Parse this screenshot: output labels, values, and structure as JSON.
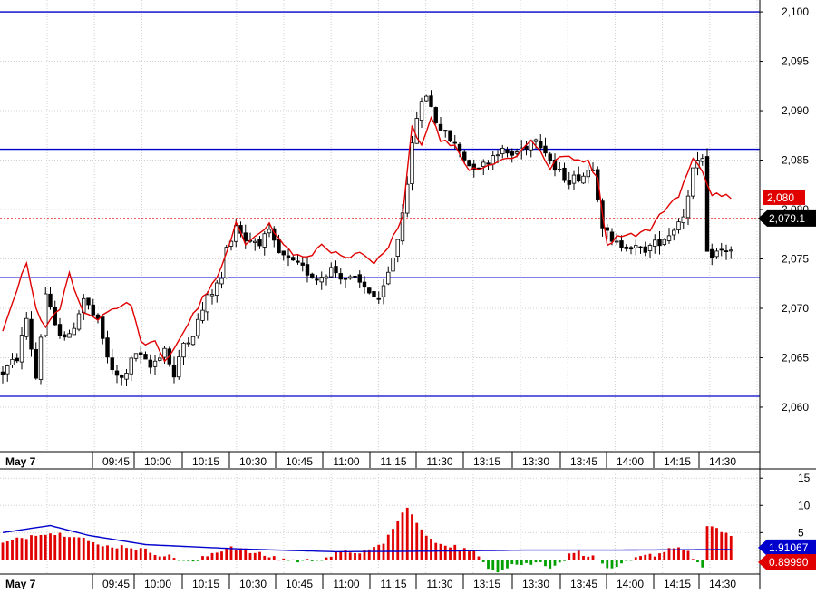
{
  "chart_data": [
    {
      "type": "candlestick",
      "title": "",
      "date_label": "May 7",
      "time_ticks": [
        "09:45",
        "10:00",
        "10:15",
        "10:30",
        "10:45",
        "11:00",
        "11:15",
        "11:30",
        "13:15",
        "13:30",
        "13:45",
        "14:00",
        "14:15",
        "14:30"
      ],
      "y_ticks": [
        "2,100",
        "2,095",
        "2,090",
        "2,085",
        "2,080",
        "2,075",
        "2,070",
        "2,065",
        "2,060"
      ],
      "ylim": [
        2055.5,
        2101.2
      ],
      "horizontal_levels": [
        2100.0,
        2086.1,
        2073.1,
        2061.1
      ],
      "reference_line": 2079.1,
      "price_label": "2,079.1",
      "ma_label": "2,080",
      "grid": true,
      "colors": {
        "candle_up": "#ffffff",
        "candle_down": "#000000",
        "moving_average": "#e00000",
        "levels": "#0000cc",
        "price_badge": "#000000",
        "ma_badge": "#e00000"
      },
      "anchors": [
        [
          0,
          2063.5
        ],
        [
          3,
          2065
        ],
        [
          5,
          2069
        ],
        [
          7,
          2063
        ],
        [
          9,
          2071.5
        ],
        [
          11,
          2068
        ],
        [
          14,
          2067
        ],
        [
          17,
          2071
        ],
        [
          20,
          2068.5
        ],
        [
          23,
          2063.5
        ],
        [
          25,
          2062.8
        ],
        [
          28,
          2065.5
        ],
        [
          31,
          2064
        ],
        [
          34,
          2066
        ],
        [
          36,
          2063
        ],
        [
          38,
          2066.5
        ],
        [
          40,
          2067.5
        ],
        [
          43,
          2071
        ],
        [
          46,
          2073
        ],
        [
          47,
          2076
        ],
        [
          49,
          2078.5
        ],
        [
          51,
          2077
        ],
        [
          54,
          2076.8
        ],
        [
          56,
          2077.5
        ],
        [
          58,
          2075.5
        ],
        [
          61,
          2074.5
        ],
        [
          63,
          2074
        ],
        [
          66,
          2073
        ],
        [
          69,
          2074
        ],
        [
          72,
          2073
        ],
        [
          74,
          2072.8
        ],
        [
          77,
          2071.8
        ],
        [
          79,
          2070.5
        ],
        [
          81,
          2073.5
        ],
        [
          83,
          2077
        ],
        [
          85,
          2083
        ],
        [
          87,
          2089.5
        ],
        [
          89,
          2091.7
        ],
        [
          91,
          2089
        ],
        [
          93,
          2087.5
        ],
        [
          96,
          2086
        ],
        [
          98,
          2084.5
        ],
        [
          101,
          2084.5
        ],
        [
          104,
          2086
        ],
        [
          107,
          2085.5
        ],
        [
          110,
          2086.5
        ],
        [
          112,
          2087.5
        ],
        [
          114,
          2086
        ],
        [
          116,
          2084
        ],
        [
          119,
          2083
        ],
        [
          122,
          2083.5
        ],
        [
          124,
          2084.5
        ],
        [
          126,
          2078.5
        ],
        [
          128,
          2076.5
        ],
        [
          131,
          2076.5
        ],
        [
          134,
          2075.8
        ],
        [
          137,
          2076.5
        ],
        [
          140,
          2077.5
        ],
        [
          143,
          2079.5
        ],
        [
          145,
          2084
        ],
        [
          147,
          2085
        ],
        [
          148,
          2075.3
        ],
        [
          151,
          2075.8
        ],
        [
          153,
          2076
        ]
      ],
      "ma_anchors": [
        [
          0,
          2067.5
        ],
        [
          3,
          2072
        ],
        [
          5,
          2074.5
        ],
        [
          7,
          2070
        ],
        [
          9,
          2068
        ],
        [
          12,
          2070
        ],
        [
          14,
          2073.5
        ],
        [
          17,
          2069.5
        ],
        [
          20,
          2069
        ],
        [
          23,
          2070
        ],
        [
          27,
          2070.5
        ],
        [
          29,
          2066.5
        ],
        [
          32,
          2066.5
        ],
        [
          34,
          2064.5
        ],
        [
          36,
          2066
        ],
        [
          39,
          2068.5
        ],
        [
          42,
          2071
        ],
        [
          45,
          2073
        ],
        [
          47,
          2075.5
        ],
        [
          49,
          2078.5
        ],
        [
          51,
          2076.5
        ],
        [
          53,
          2077.5
        ],
        [
          56,
          2078.5
        ],
        [
          58,
          2077
        ],
        [
          61,
          2075.5
        ],
        [
          64,
          2075
        ],
        [
          67,
          2076.5
        ],
        [
          70,
          2075.5
        ],
        [
          72,
          2075
        ],
        [
          75,
          2075.5
        ],
        [
          78,
          2074.5
        ],
        [
          81,
          2076
        ],
        [
          84,
          2079.5
        ],
        [
          86,
          2088.5
        ],
        [
          88,
          2086.5
        ],
        [
          90,
          2089.5
        ],
        [
          92,
          2087
        ],
        [
          95,
          2086.5
        ],
        [
          98,
          2084
        ],
        [
          102,
          2084.5
        ],
        [
          105,
          2085
        ],
        [
          108,
          2085.5
        ],
        [
          111,
          2087
        ],
        [
          113,
          2086
        ],
        [
          115,
          2084
        ],
        [
          117,
          2085.5
        ],
        [
          120,
          2085
        ],
        [
          123,
          2085
        ],
        [
          125,
          2083
        ],
        [
          127,
          2076.5
        ],
        [
          130,
          2077.5
        ],
        [
          133,
          2077.5
        ],
        [
          136,
          2078
        ],
        [
          139,
          2080
        ],
        [
          142,
          2081.5
        ],
        [
          145,
          2085
        ],
        [
          147,
          2084
        ],
        [
          149,
          2081.5
        ],
        [
          152,
          2081.5
        ],
        [
          153,
          2081
        ]
      ]
    },
    {
      "type": "bar",
      "title": "",
      "date_label": "May 7",
      "y_ticks": [
        "15",
        "10",
        "5"
      ],
      "ylim": [
        -2.6,
        16.2
      ],
      "signal_label": "1.91067",
      "histogram_label": "0.89990",
      "colors": {
        "positive": "#e00000",
        "negative": "#00a000",
        "signal": "#0000cc",
        "signal_badge": "#0000cc",
        "histogram_badge": "#e00000"
      },
      "hist_anchors": [
        [
          0,
          3
        ],
        [
          8,
          5
        ],
        [
          16,
          4.5
        ],
        [
          20,
          2.5
        ],
        [
          26,
          2.5
        ],
        [
          31,
          1.5
        ],
        [
          36,
          0.4
        ],
        [
          40,
          -0.6
        ],
        [
          44,
          1.2
        ],
        [
          48,
          2.5
        ],
        [
          53,
          1.2
        ],
        [
          58,
          0.3
        ],
        [
          63,
          -0.3
        ],
        [
          68,
          0.5
        ],
        [
          72,
          1.5
        ],
        [
          77,
          1.5
        ],
        [
          80,
          3.2
        ],
        [
          83,
          7
        ],
        [
          85,
          10
        ],
        [
          87,
          6.5
        ],
        [
          90,
          3.5
        ],
        [
          95,
          2.5
        ],
        [
          99,
          1.4
        ],
        [
          102,
          -1.2
        ],
        [
          104,
          -2
        ],
        [
          107,
          -0.8
        ],
        [
          110,
          -0.8
        ],
        [
          113,
          -0.5
        ],
        [
          115,
          -1.2
        ],
        [
          117,
          -0.5
        ],
        [
          120,
          1.5
        ],
        [
          123,
          1
        ],
        [
          126,
          -0.6
        ],
        [
          128,
          -2
        ],
        [
          131,
          -0.6
        ],
        [
          134,
          0.5
        ],
        [
          138,
          1.2
        ],
        [
          141,
          2.5
        ],
        [
          143,
          2
        ],
        [
          145,
          0.5
        ],
        [
          147,
          -1.5
        ],
        [
          148,
          6
        ],
        [
          152,
          5
        ],
        [
          153,
          4.5
        ]
      ],
      "signal_anchors": [
        [
          0,
          5
        ],
        [
          10,
          6.3
        ],
        [
          18,
          4.5
        ],
        [
          30,
          2.8
        ],
        [
          50,
          2.0
        ],
        [
          70,
          1.5
        ],
        [
          90,
          1.6
        ],
        [
          110,
          1.8
        ],
        [
          130,
          1.8
        ],
        [
          153,
          1.9
        ]
      ]
    }
  ]
}
